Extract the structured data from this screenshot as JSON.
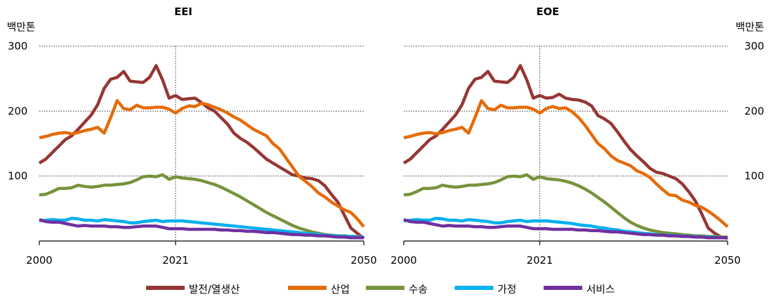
{
  "chart_data": [
    {
      "type": "line",
      "title": "EEI",
      "ylabel": "백만톤",
      "xlim": [
        2000,
        2050
      ],
      "ylim": [
        0,
        300
      ],
      "x_ticks": [
        "2000",
        "2021",
        "2050"
      ],
      "y_ticks": [
        "100",
        "200",
        "300"
      ],
      "y_axis_side": "left",
      "grid": "horizontal dotted",
      "reference_line_x": 2021,
      "x": [
        2000,
        2001,
        2002,
        2003,
        2004,
        2005,
        2006,
        2007,
        2008,
        2009,
        2010,
        2011,
        2012,
        2013,
        2014,
        2015,
        2016,
        2017,
        2018,
        2019,
        2020,
        2021,
        2022,
        2023,
        2024,
        2025,
        2026,
        2027,
        2028,
        2029,
        2030,
        2031,
        2032,
        2033,
        2034,
        2035,
        2036,
        2037,
        2038,
        2039,
        2040,
        2041,
        2042,
        2043,
        2044,
        2045,
        2046,
        2047,
        2048,
        2049,
        2050
      ],
      "series": [
        {
          "name": "발전/열생산",
          "color": "#953735",
          "values": [
            120,
            126,
            136,
            146,
            156,
            162,
            172,
            183,
            194,
            210,
            235,
            249,
            252,
            261,
            246,
            245,
            244,
            252,
            270,
            248,
            220,
            224,
            218,
            219,
            220,
            213,
            205,
            200,
            190,
            180,
            166,
            158,
            152,
            144,
            135,
            126,
            120,
            114,
            108,
            102,
            100,
            97,
            96,
            93,
            85,
            72,
            60,
            40,
            20,
            12,
            4
          ]
        },
        {
          "name": "산업",
          "color": "#E46C0A",
          "values": [
            159,
            161,
            164,
            166,
            167,
            165,
            167,
            170,
            172,
            175,
            166,
            190,
            216,
            204,
            202,
            209,
            205,
            205,
            206,
            206,
            203,
            197,
            204,
            208,
            207,
            212,
            210,
            206,
            202,
            197,
            191,
            186,
            179,
            172,
            167,
            162,
            150,
            142,
            128,
            114,
            100,
            92,
            84,
            74,
            68,
            60,
            54,
            48,
            44,
            34,
            22
          ]
        },
        {
          "name": "수송",
          "color": "#77933C",
          "values": [
            71,
            72,
            76,
            81,
            81,
            82,
            86,
            84,
            83,
            84,
            86,
            86,
            87,
            88,
            90,
            94,
            99,
            100,
            99,
            102,
            95,
            99,
            97,
            96,
            95,
            93,
            90,
            87,
            83,
            78,
            73,
            68,
            62,
            56,
            50,
            44,
            39,
            34,
            29,
            24,
            20,
            17,
            14,
            12,
            10,
            9,
            8,
            8,
            7,
            7,
            6
          ]
        },
        {
          "name": "가정",
          "color": "#00B0F0",
          "values": [
            31,
            32,
            33,
            32,
            32,
            35,
            34,
            32,
            32,
            31,
            33,
            32,
            31,
            30,
            28,
            28,
            30,
            31,
            32,
            30,
            31,
            31,
            31,
            30,
            29,
            28,
            27,
            26,
            25,
            24,
            23,
            22,
            21,
            20,
            19,
            18,
            17,
            16,
            15,
            14,
            13,
            12,
            11,
            10,
            9,
            8,
            8,
            7,
            7,
            6,
            6
          ]
        },
        {
          "name": "서비스",
          "color": "#7030A0",
          "values": [
            33,
            30,
            29,
            29,
            27,
            25,
            23,
            24,
            23,
            23,
            23,
            22,
            22,
            21,
            21,
            22,
            23,
            23,
            23,
            21,
            19,
            19,
            19,
            18,
            18,
            18,
            18,
            18,
            17,
            17,
            16,
            16,
            15,
            15,
            14,
            13,
            13,
            12,
            11,
            10,
            10,
            9,
            9,
            8,
            8,
            7,
            6,
            6,
            5,
            5,
            5
          ]
        }
      ]
    },
    {
      "type": "line",
      "title": "EOE",
      "ylabel": "백만톤",
      "xlim": [
        2000,
        2050
      ],
      "ylim": [
        0,
        300
      ],
      "x_ticks": [
        "2000",
        "2021",
        "2050"
      ],
      "y_ticks": [
        "100",
        "200",
        "300"
      ],
      "y_axis_side": "right",
      "grid": "horizontal dotted",
      "reference_line_x": 2021,
      "x": [
        2000,
        2001,
        2002,
        2003,
        2004,
        2005,
        2006,
        2007,
        2008,
        2009,
        2010,
        2011,
        2012,
        2013,
        2014,
        2015,
        2016,
        2017,
        2018,
        2019,
        2020,
        2021,
        2022,
        2023,
        2024,
        2025,
        2026,
        2027,
        2028,
        2029,
        2030,
        2031,
        2032,
        2033,
        2034,
        2035,
        2036,
        2037,
        2038,
        2039,
        2040,
        2041,
        2042,
        2043,
        2044,
        2045,
        2046,
        2047,
        2048,
        2049,
        2050
      ],
      "series": [
        {
          "name": "발전/열생산",
          "color": "#953735",
          "values": [
            120,
            126,
            136,
            146,
            156,
            162,
            172,
            183,
            194,
            210,
            235,
            249,
            252,
            261,
            246,
            245,
            244,
            252,
            270,
            248,
            220,
            224,
            220,
            221,
            226,
            220,
            218,
            217,
            214,
            208,
            193,
            188,
            181,
            168,
            154,
            141,
            131,
            122,
            112,
            106,
            104,
            100,
            96,
            88,
            76,
            62,
            42,
            20,
            12,
            6,
            4
          ]
        },
        {
          "name": "산업",
          "color": "#E46C0A",
          "values": [
            159,
            161,
            164,
            166,
            167,
            165,
            167,
            170,
            172,
            175,
            166,
            190,
            216,
            204,
            202,
            209,
            205,
            205,
            206,
            206,
            203,
            197,
            204,
            207,
            204,
            205,
            199,
            190,
            178,
            164,
            150,
            142,
            131,
            124,
            120,
            116,
            108,
            104,
            98,
            88,
            79,
            71,
            70,
            63,
            60,
            55,
            52,
            46,
            39,
            31,
            22
          ]
        },
        {
          "name": "수송",
          "color": "#77933C",
          "values": [
            71,
            72,
            76,
            81,
            81,
            82,
            86,
            84,
            83,
            84,
            86,
            86,
            87,
            88,
            90,
            94,
            99,
            100,
            99,
            102,
            95,
            99,
            96,
            95,
            94,
            92,
            89,
            85,
            80,
            74,
            67,
            60,
            52,
            44,
            36,
            29,
            24,
            20,
            17,
            15,
            13,
            12,
            11,
            10,
            9,
            8,
            8,
            7,
            7,
            6,
            6
          ]
        },
        {
          "name": "가정",
          "color": "#00B0F0",
          "values": [
            31,
            32,
            33,
            32,
            32,
            35,
            34,
            32,
            32,
            31,
            33,
            32,
            31,
            30,
            28,
            28,
            30,
            31,
            32,
            30,
            31,
            31,
            31,
            30,
            29,
            28,
            27,
            25,
            24,
            23,
            21,
            20,
            18,
            17,
            15,
            14,
            13,
            12,
            11,
            10,
            9,
            9,
            8,
            8,
            7,
            7,
            6,
            6,
            6,
            5,
            5
          ]
        },
        {
          "name": "서비스",
          "color": "#7030A0",
          "values": [
            33,
            30,
            29,
            29,
            27,
            25,
            23,
            24,
            23,
            23,
            23,
            22,
            22,
            21,
            21,
            22,
            23,
            23,
            23,
            21,
            19,
            19,
            19,
            18,
            18,
            18,
            18,
            17,
            17,
            16,
            16,
            15,
            14,
            14,
            13,
            12,
            11,
            10,
            10,
            9,
            9,
            8,
            8,
            7,
            7,
            6,
            6,
            5,
            5,
            5,
            5
          ]
        }
      ]
    }
  ],
  "legend": [
    {
      "label": "발전/열생산",
      "color": "#953735"
    },
    {
      "label": "산업",
      "color": "#E46C0A"
    },
    {
      "label": "수송",
      "color": "#77933C"
    },
    {
      "label": "가정",
      "color": "#00B0F0"
    },
    {
      "label": "서비스",
      "color": "#7030A0"
    }
  ]
}
